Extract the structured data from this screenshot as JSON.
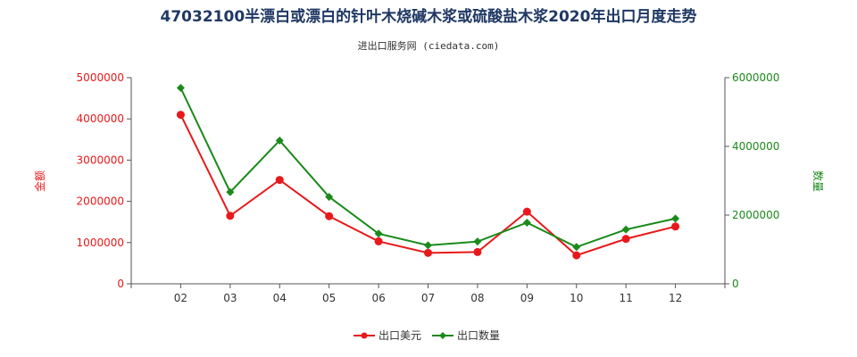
{
  "chart_data": {
    "type": "line",
    "title": "47032100半漂白或漂白的针叶木烧碱木浆或硫酸盐木浆2020年出口月度走势",
    "subtitle": "进出口服务网 (ciedata.com)",
    "categories": [
      "02",
      "03",
      "04",
      "05",
      "06",
      "07",
      "08",
      "09",
      "10",
      "11",
      "12"
    ],
    "y_left": {
      "label": "金额",
      "range": [
        0,
        5000000
      ],
      "ticks": [
        0,
        1000000,
        2000000,
        3000000,
        4000000,
        5000000
      ],
      "tick_labels": [
        "0",
        "1000000",
        "2000000",
        "3000000",
        "4000000",
        "5000000"
      ],
      "color": "#e8191b"
    },
    "y_right": {
      "label": "数量",
      "range": [
        0,
        6000000
      ],
      "ticks": [
        0,
        2000000,
        4000000,
        6000000
      ],
      "tick_labels": [
        "0",
        "2000000",
        "4000000",
        "6000000"
      ],
      "color": "#1a8a1a"
    },
    "series": [
      {
        "name": "出口美元",
        "axis": "left",
        "color": "#e8191b",
        "marker": "circle",
        "values": [
          4100000,
          1650000,
          2520000,
          1640000,
          1030000,
          750000,
          770000,
          1750000,
          690000,
          1090000,
          1390000
        ]
      },
      {
        "name": "出口数量",
        "axis": "right",
        "color": "#1a8a1a",
        "marker": "diamond",
        "values": [
          5700000,
          2670000,
          4170000,
          2530000,
          1460000,
          1120000,
          1230000,
          1780000,
          1070000,
          1580000,
          1900000
        ]
      }
    ],
    "legend_position": "bottom-center",
    "grid": false
  }
}
